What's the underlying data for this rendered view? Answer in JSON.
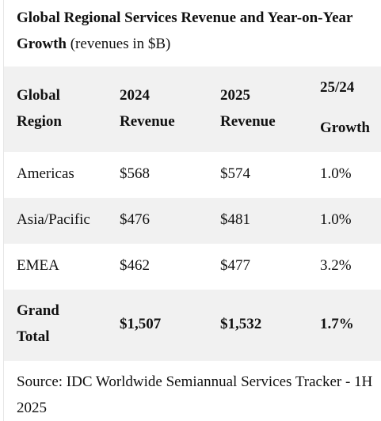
{
  "title": {
    "bold": "Global Regional Services Revenue and Year-on-Year Growth",
    "normal": " (revenues in $B)"
  },
  "table": {
    "headers": {
      "region": [
        "Global",
        "Region"
      ],
      "y2024": [
        "2024",
        "Revenue"
      ],
      "y2025": [
        "2025",
        "Revenue"
      ],
      "growth": [
        "25/24",
        "Growth"
      ]
    },
    "rows": [
      {
        "region": "Americas",
        "y2024": "$568",
        "y2025": "$574",
        "growth": "1.0%"
      },
      {
        "region": "Asia/Pacific",
        "y2024": "$476",
        "y2025": "$481",
        "growth": "1.0%"
      },
      {
        "region": "EMEA",
        "y2024": "$462",
        "y2025": "$477",
        "growth": "3.2%"
      }
    ],
    "total": {
      "region": [
        "Grand",
        "Total"
      ],
      "y2024": "$1,507",
      "y2025": "$1,532",
      "growth": "1.7%"
    }
  },
  "source": "Source: IDC Worldwide Semiannual Services Tracker - 1H 2025"
}
